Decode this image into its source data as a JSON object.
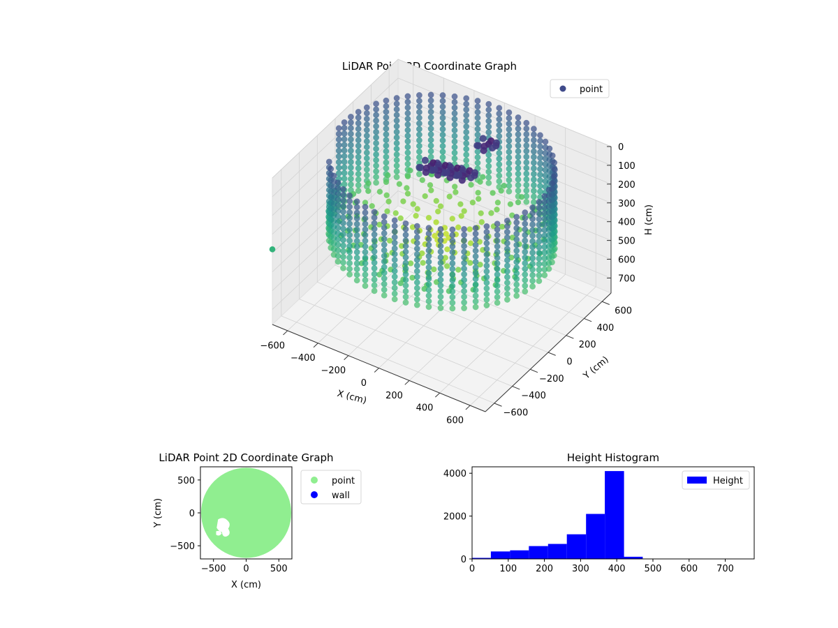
{
  "chart_data": [
    {
      "type": "scatter",
      "title": "LiDAR Point 3D Coordinate Graph",
      "xlabel": "X (cm)",
      "ylabel": "Y (cm)",
      "zlabel": "H (cm)",
      "xlim": [
        -700,
        700
      ],
      "ylim": [
        -700,
        700
      ],
      "zlim": [
        0,
        780
      ],
      "z_inverted": true,
      "x_ticks": [
        -600,
        -400,
        -200,
        0,
        200,
        400,
        600
      ],
      "y_ticks": [
        -600,
        -400,
        -200,
        0,
        200,
        400,
        600
      ],
      "z_ticks": [
        0,
        100,
        200,
        300,
        400,
        500,
        600,
        700
      ],
      "legend": {
        "placement": "top-right",
        "entries": [
          {
            "label": "point",
            "color": "#3f4a8a"
          }
        ]
      },
      "colormap": "viridis",
      "grid": true,
      "series": [
        {
          "name": "point",
          "wall_ring": {
            "radius": 640,
            "h_range": [
              0,
              420
            ],
            "angle_step_deg": 6
          },
          "floor": {
            "radius_max": 600,
            "h": 400
          },
          "cluster": [
            {
              "x": -150,
              "y": 250,
              "h": 200
            },
            {
              "x": -100,
              "y": 300,
              "h": 220
            },
            {
              "x": -200,
              "y": 200,
              "h": 180
            },
            {
              "x": -50,
              "y": 350,
              "h": 240
            },
            {
              "x": 50,
              "y": 420,
              "h": 80
            }
          ],
          "outlier": {
            "x": -700,
            "y": -700,
            "h": 380
          }
        }
      ]
    },
    {
      "type": "scatter",
      "title": "LiDAR Point 2D Coordinate Graph",
      "xlabel": "X (cm)",
      "ylabel": "Y (cm)",
      "xlim": [
        -700,
        700
      ],
      "ylim": [
        -700,
        700
      ],
      "x_ticks": [
        -500,
        0,
        500
      ],
      "y_ticks": [
        -500,
        0,
        500
      ],
      "legend": {
        "placement": "outside-right",
        "entries": [
          {
            "label": "point",
            "color": "#90ee90"
          },
          {
            "label": "wall",
            "color": "#0000ff"
          }
        ]
      },
      "series": [
        {
          "name": "point",
          "color": "#90ee90",
          "region": "disk",
          "radius": 690
        },
        {
          "name": "wall",
          "color": "#0000ff",
          "values": []
        }
      ]
    },
    {
      "type": "bar",
      "title": "Height Histogram",
      "xlabel": "",
      "ylabel": "",
      "xlim": [
        0,
        780
      ],
      "ylim": [
        0,
        4300
      ],
      "x_ticks": [
        0,
        100,
        200,
        300,
        400,
        500,
        600,
        700
      ],
      "y_ticks": [
        0,
        2000,
        4000
      ],
      "legend": {
        "placement": "top-right",
        "entries": [
          {
            "label": "Height",
            "color": "#0000ff"
          }
        ]
      },
      "bin_edges": [
        0,
        52,
        105,
        157,
        210,
        262,
        315,
        367,
        420,
        472,
        525,
        577,
        630,
        682,
        735
      ],
      "counts": [
        50,
        350,
        400,
        600,
        700,
        1150,
        2100,
        4100,
        100,
        10,
        5,
        0,
        0,
        0
      ],
      "series": [
        {
          "name": "Height",
          "color": "#0000ff"
        }
      ]
    }
  ]
}
